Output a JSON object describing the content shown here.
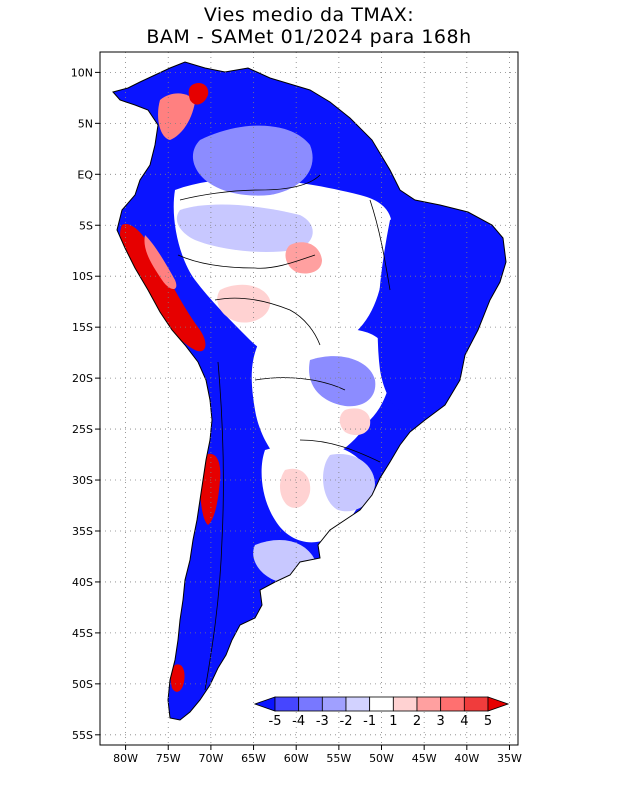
{
  "title": {
    "line1": "Vies medio da TMAX:",
    "line2": "BAM - SAMet 01/2024  para 168h"
  },
  "map": {
    "region": "South America",
    "variable": "TMAX bias",
    "lon_range": [
      -83,
      -34
    ],
    "lat_range": [
      12,
      -56
    ],
    "lat_ticks": [
      {
        "lat": 10,
        "label": "10N"
      },
      {
        "lat": 5,
        "label": "5N"
      },
      {
        "lat": 0,
        "label": "EQ"
      },
      {
        "lat": -5,
        "label": "5S"
      },
      {
        "lat": -10,
        "label": "10S"
      },
      {
        "lat": -15,
        "label": "15S"
      },
      {
        "lat": -20,
        "label": "20S"
      },
      {
        "lat": -25,
        "label": "25S"
      },
      {
        "lat": -30,
        "label": "30S"
      },
      {
        "lat": -35,
        "label": "35S"
      },
      {
        "lat": -40,
        "label": "40S"
      },
      {
        "lat": -45,
        "label": "45S"
      },
      {
        "lat": -50,
        "label": "50S"
      },
      {
        "lat": -55,
        "label": "55S"
      }
    ],
    "lon_ticks": [
      {
        "lon": -80,
        "label": "80W"
      },
      {
        "lon": -75,
        "label": "75W"
      },
      {
        "lon": -70,
        "label": "70W"
      },
      {
        "lon": -65,
        "label": "65W"
      },
      {
        "lon": -60,
        "label": "60W"
      },
      {
        "lon": -55,
        "label": "55W"
      },
      {
        "lon": -50,
        "label": "50W"
      },
      {
        "lon": -45,
        "label": "45W"
      },
      {
        "lon": -40,
        "label": "40W"
      },
      {
        "lon": -35,
        "label": "35W"
      }
    ]
  },
  "colorbar": {
    "labels": [
      "-5",
      "-4",
      "-3",
      "-2",
      "-1",
      "1",
      "2",
      "3",
      "4",
      "5"
    ],
    "colors": [
      "#1a1af0",
      "#4646ff",
      "#7878ff",
      "#a0a0ff",
      "#d2d2ff",
      "#ffffff",
      "#ffd2d2",
      "#ffa0a0",
      "#ff7070",
      "#f03c3c",
      "#e00000",
      "#0000e6"
    ]
  },
  "colors": {
    "strong_cold": "#0a14ff",
    "cold": "#4646ff",
    "mild_cold": "#8c8cff",
    "slight_cold": "#c8c8ff",
    "neutral": "#ffffff",
    "slight_warm": "#ffd2d2",
    "warm": "#ff8080",
    "hot": "#e60000",
    "border": "#000000",
    "grid": "#808080"
  }
}
